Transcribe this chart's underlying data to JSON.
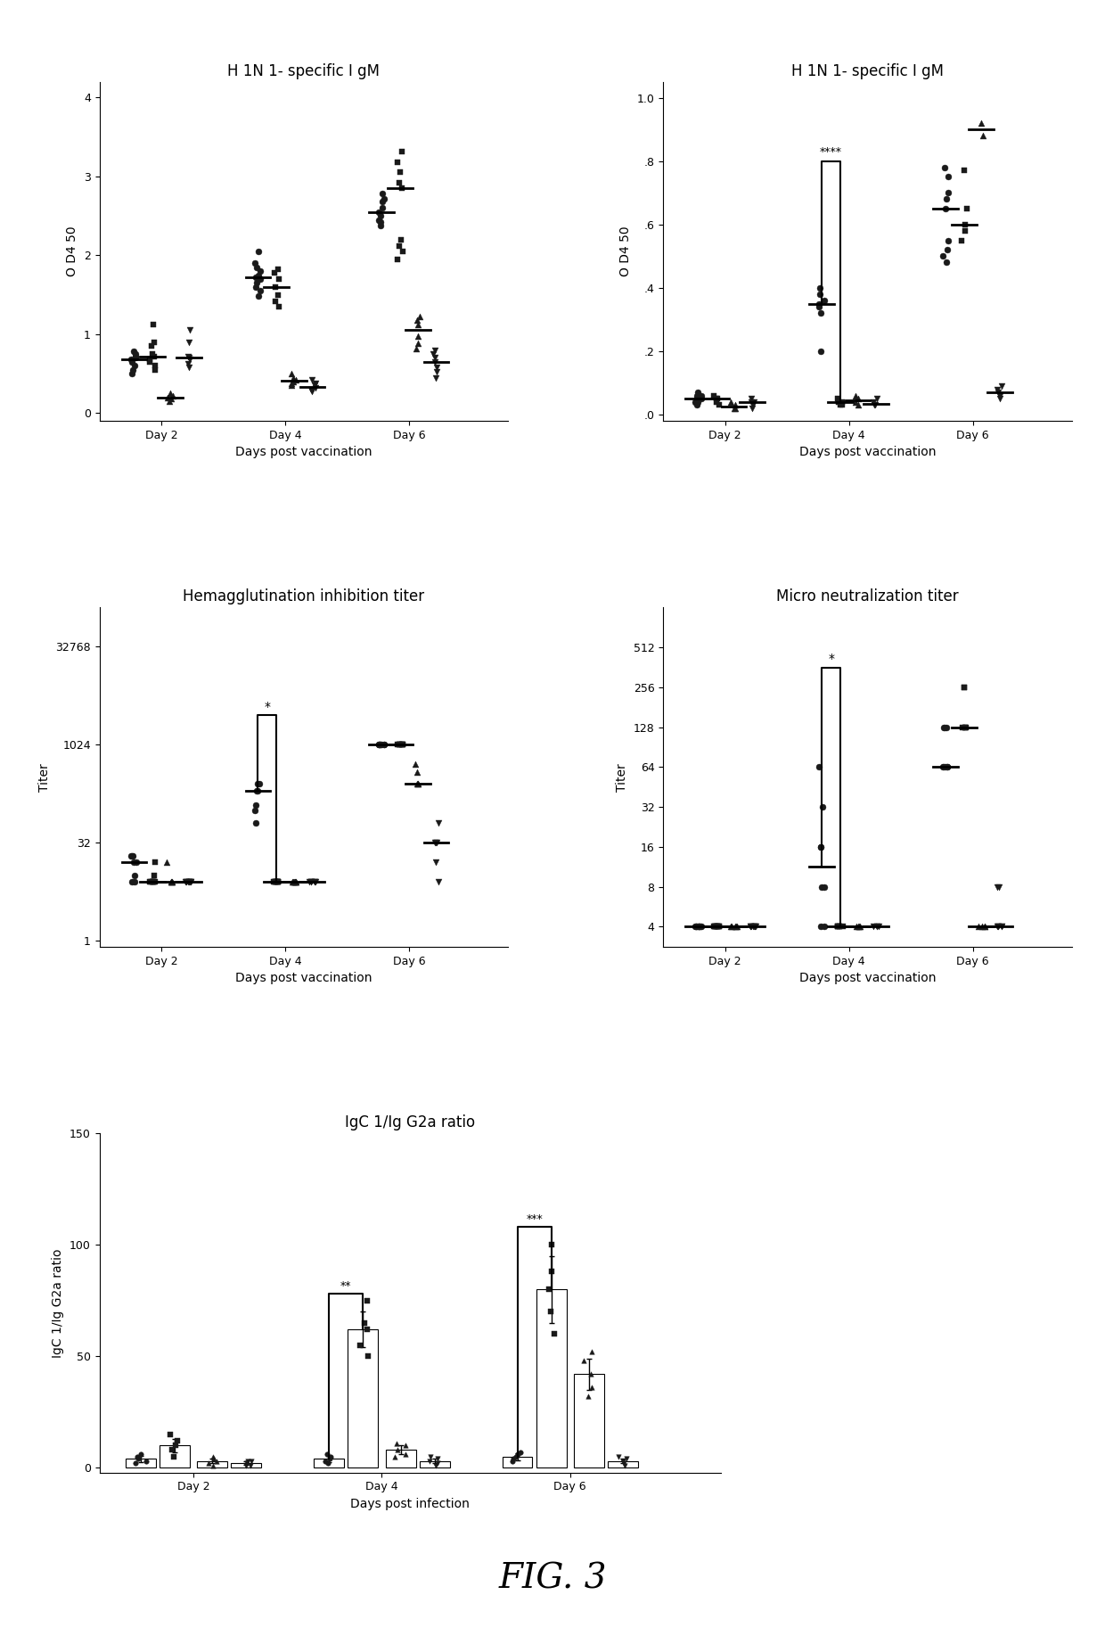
{
  "fig_label": "FIG. 3",
  "panel_titles": [
    "H 1N 1- specific I gM",
    "H 1N 1- specific I gM",
    "Hemagglutination inhibition titer",
    "Micro neutralization titer",
    "IgC 1/Ig G2a ratio"
  ],
  "xlabels": [
    "Days post vaccination",
    "Days post vaccination",
    "Days post vaccination",
    "Days post vaccination",
    "Days post infection"
  ],
  "ylabels": [
    "O D4 50",
    "O D4 50",
    "Titer",
    "Titer",
    "IgC 1/Ig G2a ratio"
  ],
  "background_color": "#ffffff"
}
